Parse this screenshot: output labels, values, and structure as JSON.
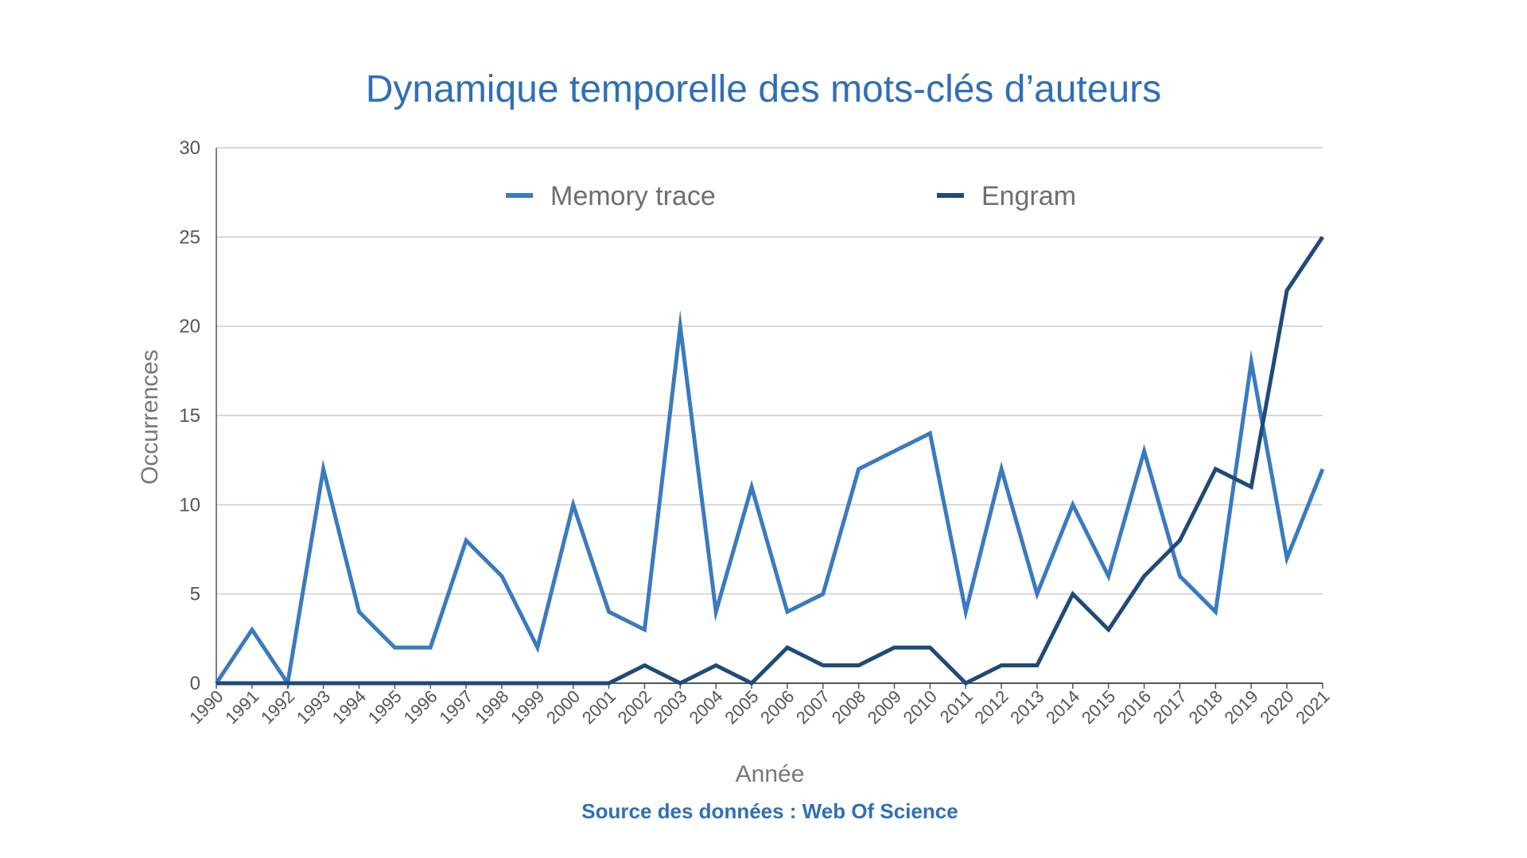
{
  "chart_data": {
    "type": "line",
    "title": "Dynamique temporelle des mots-clés d’auteurs",
    "xlabel": "Année",
    "ylabel": "Occurrences",
    "source": "Source des données : Web Of Science",
    "ylim": [
      0,
      30
    ],
    "yticks": [
      0,
      5,
      10,
      15,
      20,
      25,
      30
    ],
    "grid": true,
    "legend": "top",
    "x": [
      "1990",
      "1991",
      "1992",
      "1993",
      "1994",
      "1995",
      "1996",
      "1997",
      "1998",
      "1999",
      "2000",
      "2001",
      "2002",
      "2003",
      "2004",
      "2005",
      "2006",
      "2007",
      "2008",
      "2009",
      "2010",
      "2011",
      "2012",
      "2013",
      "2014",
      "2015",
      "2016",
      "2017",
      "2018",
      "2019",
      "2020",
      "2021"
    ],
    "series": [
      {
        "name": "Memory trace",
        "color": "#3a7bbf",
        "values": [
          0,
          3,
          0,
          12,
          4,
          2,
          2,
          8,
          6,
          2,
          10,
          4,
          3,
          20,
          4,
          11,
          4,
          5,
          12,
          13,
          14,
          4,
          12,
          5,
          10,
          6,
          13,
          6,
          4,
          18,
          7,
          12
        ]
      },
      {
        "name": "Engram",
        "color": "#1f4a7a",
        "values": [
          0,
          0,
          0,
          0,
          0,
          0,
          0,
          0,
          0,
          0,
          0,
          0,
          1,
          0,
          1,
          0,
          2,
          1,
          1,
          2,
          2,
          0,
          1,
          1,
          5,
          3,
          6,
          8,
          12,
          11,
          22,
          25
        ]
      }
    ],
    "colors": {
      "title": "#2f6fb7",
      "source": "#2f6fb7",
      "grid": "#cccccc",
      "axis": "#555555"
    }
  }
}
